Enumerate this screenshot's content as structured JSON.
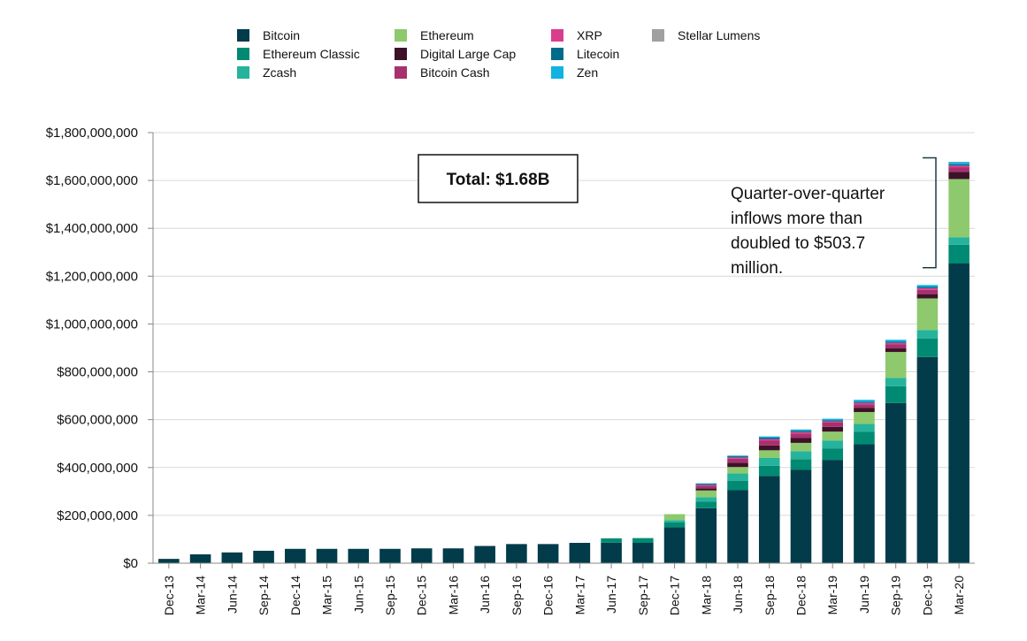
{
  "chart_data": {
    "type": "bar",
    "stacked": true,
    "categories": [
      "Dec-13",
      "Mar-14",
      "Jun-14",
      "Sep-14",
      "Dec-14",
      "Mar-15",
      "Jun-15",
      "Sep-15",
      "Dec-15",
      "Mar-16",
      "Jun-16",
      "Sep-16",
      "Dec-16",
      "Mar-17",
      "Jun-17",
      "Sep-17",
      "Dec-17",
      "Mar-18",
      "Jun-18",
      "Sep-18",
      "Dec-18",
      "Mar-19",
      "Jun-19",
      "Sep-19",
      "Dec-19",
      "Mar-20"
    ],
    "ylim": [
      0,
      1800000000
    ],
    "yticks": [
      {
        "value": 0,
        "label": "$0"
      },
      {
        "value": 200000000,
        "label": "$200,000,000"
      },
      {
        "value": 400000000,
        "label": "$400,000,000"
      },
      {
        "value": 600000000,
        "label": "$600,000,000"
      },
      {
        "value": 800000000,
        "label": "$800,000,000"
      },
      {
        "value": 1000000000,
        "label": "$1,000,000,000"
      },
      {
        "value": 1200000000,
        "label": "$1,200,000,000"
      },
      {
        "value": 1400000000,
        "label": "$1,400,000,000"
      },
      {
        "value": 1600000000,
        "label": "$1,600,000,000"
      },
      {
        "value": 1800000000,
        "label": "$1,800,000,000"
      }
    ],
    "grid": true,
    "legend_position": "top",
    "series": [
      {
        "name": "Bitcoin",
        "color": "#023b4a",
        "values": [
          18000000,
          37000000,
          45000000,
          52000000,
          60000000,
          60000000,
          60000000,
          60000000,
          62000000,
          62000000,
          72000000,
          80000000,
          80000000,
          85000000,
          86000000,
          85000000,
          150000000,
          230000000,
          305000000,
          365000000,
          390000000,
          432000000,
          497000000,
          670000000,
          862000000,
          1253000000
        ]
      },
      {
        "name": "Ethereum Classic",
        "color": "#008a73",
        "values": [
          0,
          0,
          0,
          0,
          0,
          0,
          0,
          0,
          0,
          0,
          0,
          0,
          0,
          0,
          18000000,
          20000000,
          20000000,
          28000000,
          40000000,
          42000000,
          45000000,
          48000000,
          52000000,
          70000000,
          78000000,
          78000000
        ]
      },
      {
        "name": "Zcash",
        "color": "#26b39b",
        "values": [
          0,
          0,
          0,
          0,
          0,
          0,
          0,
          0,
          0,
          0,
          0,
          0,
          0,
          0,
          0,
          0,
          10000000,
          18000000,
          30000000,
          33000000,
          33000000,
          33000000,
          33000000,
          35000000,
          35000000,
          32000000
        ]
      },
      {
        "name": "Ethereum",
        "color": "#8ec96e",
        "values": [
          0,
          0,
          0,
          0,
          0,
          0,
          0,
          0,
          0,
          0,
          0,
          0,
          0,
          0,
          0,
          0,
          25000000,
          28000000,
          27000000,
          32000000,
          35000000,
          37000000,
          50000000,
          108000000,
          132000000,
          243000000
        ]
      },
      {
        "name": "Digital Large Cap",
        "color": "#3d1228",
        "values": [
          0,
          0,
          0,
          0,
          0,
          0,
          0,
          0,
          0,
          0,
          0,
          0,
          0,
          0,
          0,
          0,
          0,
          9000000,
          18000000,
          20000000,
          20000000,
          20000000,
          18000000,
          15000000,
          18000000,
          30000000
        ]
      },
      {
        "name": "Bitcoin Cash",
        "color": "#a8306e",
        "values": [
          0,
          0,
          0,
          0,
          0,
          0,
          0,
          0,
          0,
          0,
          0,
          0,
          0,
          0,
          0,
          0,
          0,
          10000000,
          17000000,
          20000000,
          19000000,
          18000000,
          14000000,
          17000000,
          18000000,
          18000000
        ]
      },
      {
        "name": "XRP",
        "color": "#db3d8e",
        "values": [
          0,
          0,
          0,
          0,
          0,
          0,
          0,
          0,
          0,
          0,
          0,
          0,
          0,
          0,
          0,
          0,
          0,
          4000000,
          5000000,
          7000000,
          6000000,
          5000000,
          6000000,
          6000000,
          7000000,
          8000000
        ]
      },
      {
        "name": "Litecoin",
        "color": "#006b8a",
        "values": [
          0,
          0,
          0,
          0,
          0,
          0,
          0,
          0,
          0,
          0,
          0,
          0,
          0,
          0,
          0,
          0,
          0,
          5000000,
          5000000,
          6000000,
          6000000,
          5000000,
          5000000,
          5000000,
          5000000,
          5000000
        ]
      },
      {
        "name": "Zen",
        "color": "#11b3e0",
        "values": [
          0,
          0,
          0,
          0,
          0,
          0,
          0,
          0,
          0,
          0,
          0,
          0,
          0,
          0,
          0,
          0,
          0,
          2000000,
          3000000,
          5000000,
          5000000,
          6000000,
          8000000,
          8000000,
          8000000,
          10000000
        ]
      },
      {
        "name": "Stellar Lumens",
        "color": "#a0a0a0",
        "values": [
          0,
          0,
          0,
          0,
          0,
          0,
          0,
          0,
          0,
          0,
          0,
          0,
          0,
          0,
          0,
          0,
          0,
          0,
          0,
          0,
          0,
          0,
          0,
          0,
          0,
          1000000
        ]
      }
    ],
    "annotations": {
      "total_label": "Total: $1.68B",
      "note": "Quarter-over-quarter inflows more than doubled to $503.7 million.",
      "note_lines": [
        "Quarter-over-quarter",
        "inflows more than",
        "doubled to $503.7",
        "million."
      ],
      "bracket_range": [
        1250000000,
        1680000000
      ]
    }
  },
  "legend": {
    "columns": [
      [
        "Bitcoin",
        "Ethereum Classic",
        "Zcash"
      ],
      [
        "Ethereum",
        "Digital Large Cap",
        "Bitcoin Cash"
      ],
      [
        "XRP",
        "Litecoin",
        "Zen"
      ],
      [
        "Stellar Lumens"
      ]
    ]
  }
}
